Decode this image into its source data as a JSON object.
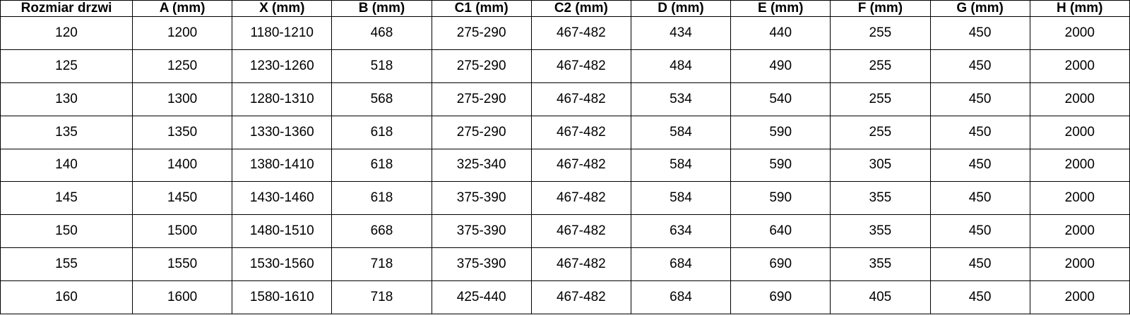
{
  "table": {
    "header": [
      "Rozmiar drzwi",
      "A (mm)",
      "X (mm)",
      "B (mm)",
      "C1 (mm)",
      "C2 (mm)",
      "D (mm)",
      "E (mm)",
      "F (mm)",
      "G (mm)",
      "H (mm)"
    ],
    "rows": [
      [
        "120",
        "1200",
        "1180-1210",
        "468",
        "275-290",
        "467-482",
        "434",
        "440",
        "255",
        "450",
        "2000"
      ],
      [
        "125",
        "1250",
        "1230-1260",
        "518",
        "275-290",
        "467-482",
        "484",
        "490",
        "255",
        "450",
        "2000"
      ],
      [
        "130",
        "1300",
        "1280-1310",
        "568",
        "275-290",
        "467-482",
        "534",
        "540",
        "255",
        "450",
        "2000"
      ],
      [
        "135",
        "1350",
        "1330-1360",
        "618",
        "275-290",
        "467-482",
        "584",
        "590",
        "255",
        "450",
        "2000"
      ],
      [
        "140",
        "1400",
        "1380-1410",
        "618",
        "325-340",
        "467-482",
        "584",
        "590",
        "305",
        "450",
        "2000"
      ],
      [
        "145",
        "1450",
        "1430-1460",
        "618",
        "375-390",
        "467-482",
        "584",
        "590",
        "355",
        "450",
        "2000"
      ],
      [
        "150",
        "1500",
        "1480-1510",
        "668",
        "375-390",
        "467-482",
        "634",
        "640",
        "355",
        "450",
        "2000"
      ],
      [
        "155",
        "1550",
        "1530-1560",
        "718",
        "375-390",
        "467-482",
        "684",
        "690",
        "355",
        "450",
        "2000"
      ],
      [
        "160",
        "1600",
        "1580-1610",
        "718",
        "425-440",
        "467-482",
        "684",
        "690",
        "405",
        "450",
        "2000"
      ]
    ]
  }
}
